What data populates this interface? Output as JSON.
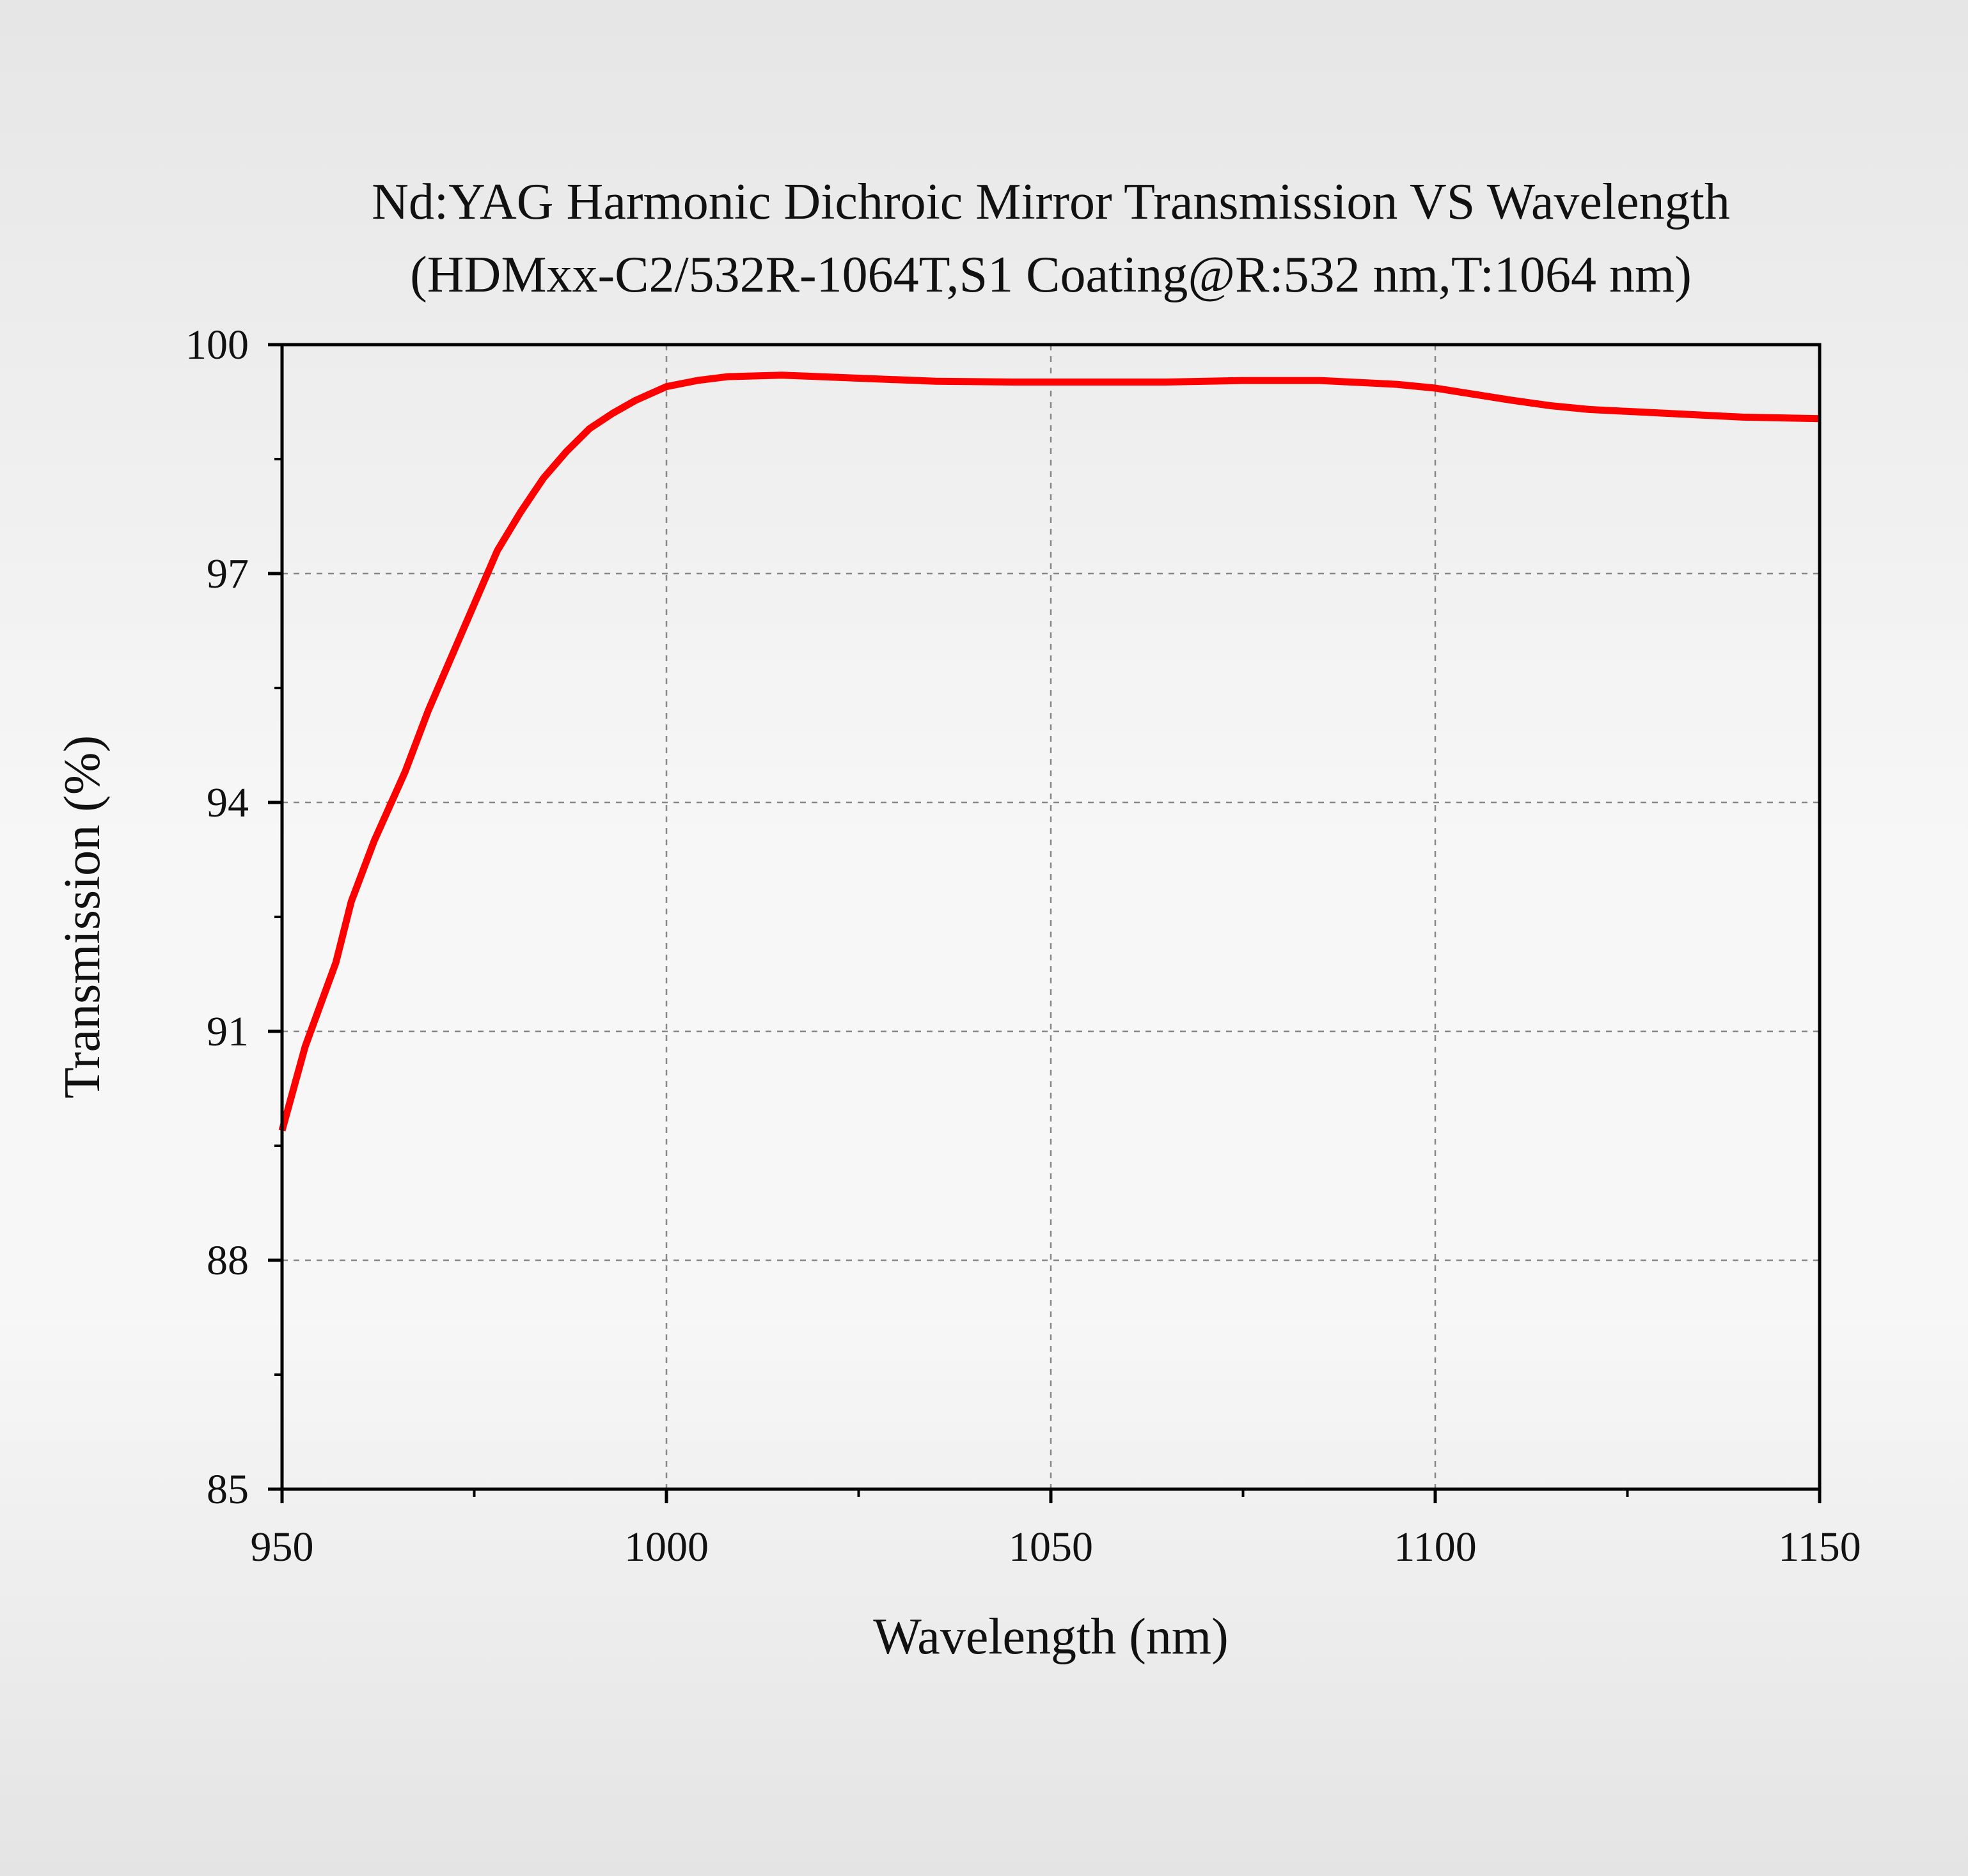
{
  "chart_data": {
    "type": "line",
    "title": "Nd:YAG Harmonic Dichroic Mirror Transmission VS Wavelength",
    "subtitle": "(HDMxx-C2/532R-1064T,S1 Coating@R:532 nm,T:1064 nm)",
    "xlabel": "Wavelength (nm)",
    "ylabel": "Transmission (%)",
    "xlim": [
      950,
      1150
    ],
    "ylim": [
      85,
      100
    ],
    "x_ticks": [
      950,
      1000,
      1050,
      1100,
      1150
    ],
    "y_ticks": [
      85,
      88,
      91,
      94,
      97,
      100
    ],
    "x_tick_labels": [
      "950",
      "1000",
      "1050",
      "1100",
      "1150"
    ],
    "y_tick_labels": [
      "85",
      "88",
      "91",
      "94",
      "97",
      "100"
    ],
    "grid": true,
    "series": [
      {
        "color": "#ff0000",
        "x": [
          950,
          953,
          957,
          959,
          962,
          966,
          969,
          972,
          975,
          978,
          981,
          984,
          987,
          990,
          993,
          996,
          1000,
          1004,
          1008,
          1015,
          1025,
          1035,
          1045,
          1055,
          1065,
          1075,
          1085,
          1095,
          1100,
          1105,
          1110,
          1115,
          1120,
          1130,
          1140,
          1150
        ],
        "y": [
          89.7,
          90.8,
          91.9,
          92.7,
          93.5,
          94.4,
          95.2,
          95.9,
          96.6,
          97.3,
          97.8,
          98.25,
          98.6,
          98.9,
          99.1,
          99.27,
          99.45,
          99.53,
          99.58,
          99.6,
          99.56,
          99.52,
          99.51,
          99.51,
          99.51,
          99.53,
          99.53,
          99.48,
          99.43,
          99.35,
          99.27,
          99.2,
          99.15,
          99.1,
          99.05,
          99.03
        ]
      }
    ]
  }
}
